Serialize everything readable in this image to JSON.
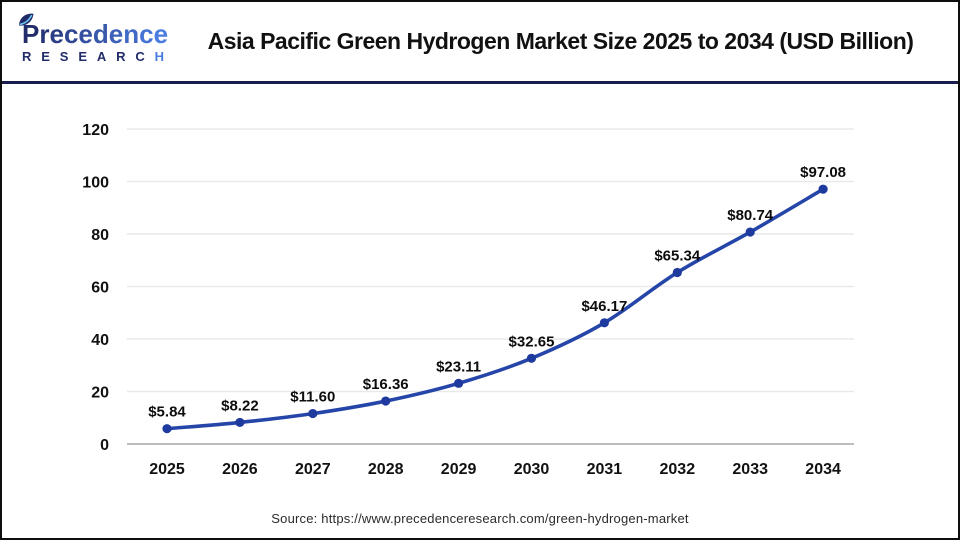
{
  "header": {
    "logo": {
      "word": "Precedence",
      "subword": "RESEARCH"
    },
    "title": "Asia Pacific Green Hydrogen Market Size 2025 to 2034 (USD Billion)"
  },
  "chart_data": {
    "type": "line",
    "title": "Asia Pacific Green Hydrogen Market Size 2025 to 2034 (USD Billion)",
    "categories": [
      "2025",
      "2026",
      "2027",
      "2028",
      "2029",
      "2030",
      "2031",
      "2032",
      "2033",
      "2034"
    ],
    "values": [
      5.84,
      8.22,
      11.6,
      16.36,
      23.11,
      32.65,
      46.17,
      65.34,
      80.74,
      97.08
    ],
    "point_labels": [
      "$5.84",
      "$8.22",
      "$11.60",
      "$16.36",
      "$23.11",
      "$32.65",
      "$46.17",
      "$65.34",
      "$80.74",
      "$97.08"
    ],
    "unit": "USD Billion",
    "xlabel": "",
    "ylabel": "",
    "yticks": [
      0,
      20,
      40,
      60,
      80,
      100,
      120
    ],
    "ylim": [
      0,
      120
    ],
    "grid": true,
    "legend": "none",
    "line_color": "#2545a8",
    "marker_color": "#1f3a9e",
    "grid_color": "#e9e9e9",
    "axis_color": "#bdbdbd"
  },
  "footer": {
    "source": "Source: https://www.precedenceresearch.com/green-hydrogen-market"
  },
  "colors": {
    "divider_navy": "#191d4d",
    "logo_navy": "#222c6b",
    "logo_blue": "#4a7be0",
    "leaf_vein_blue": "#6fc6f0"
  }
}
